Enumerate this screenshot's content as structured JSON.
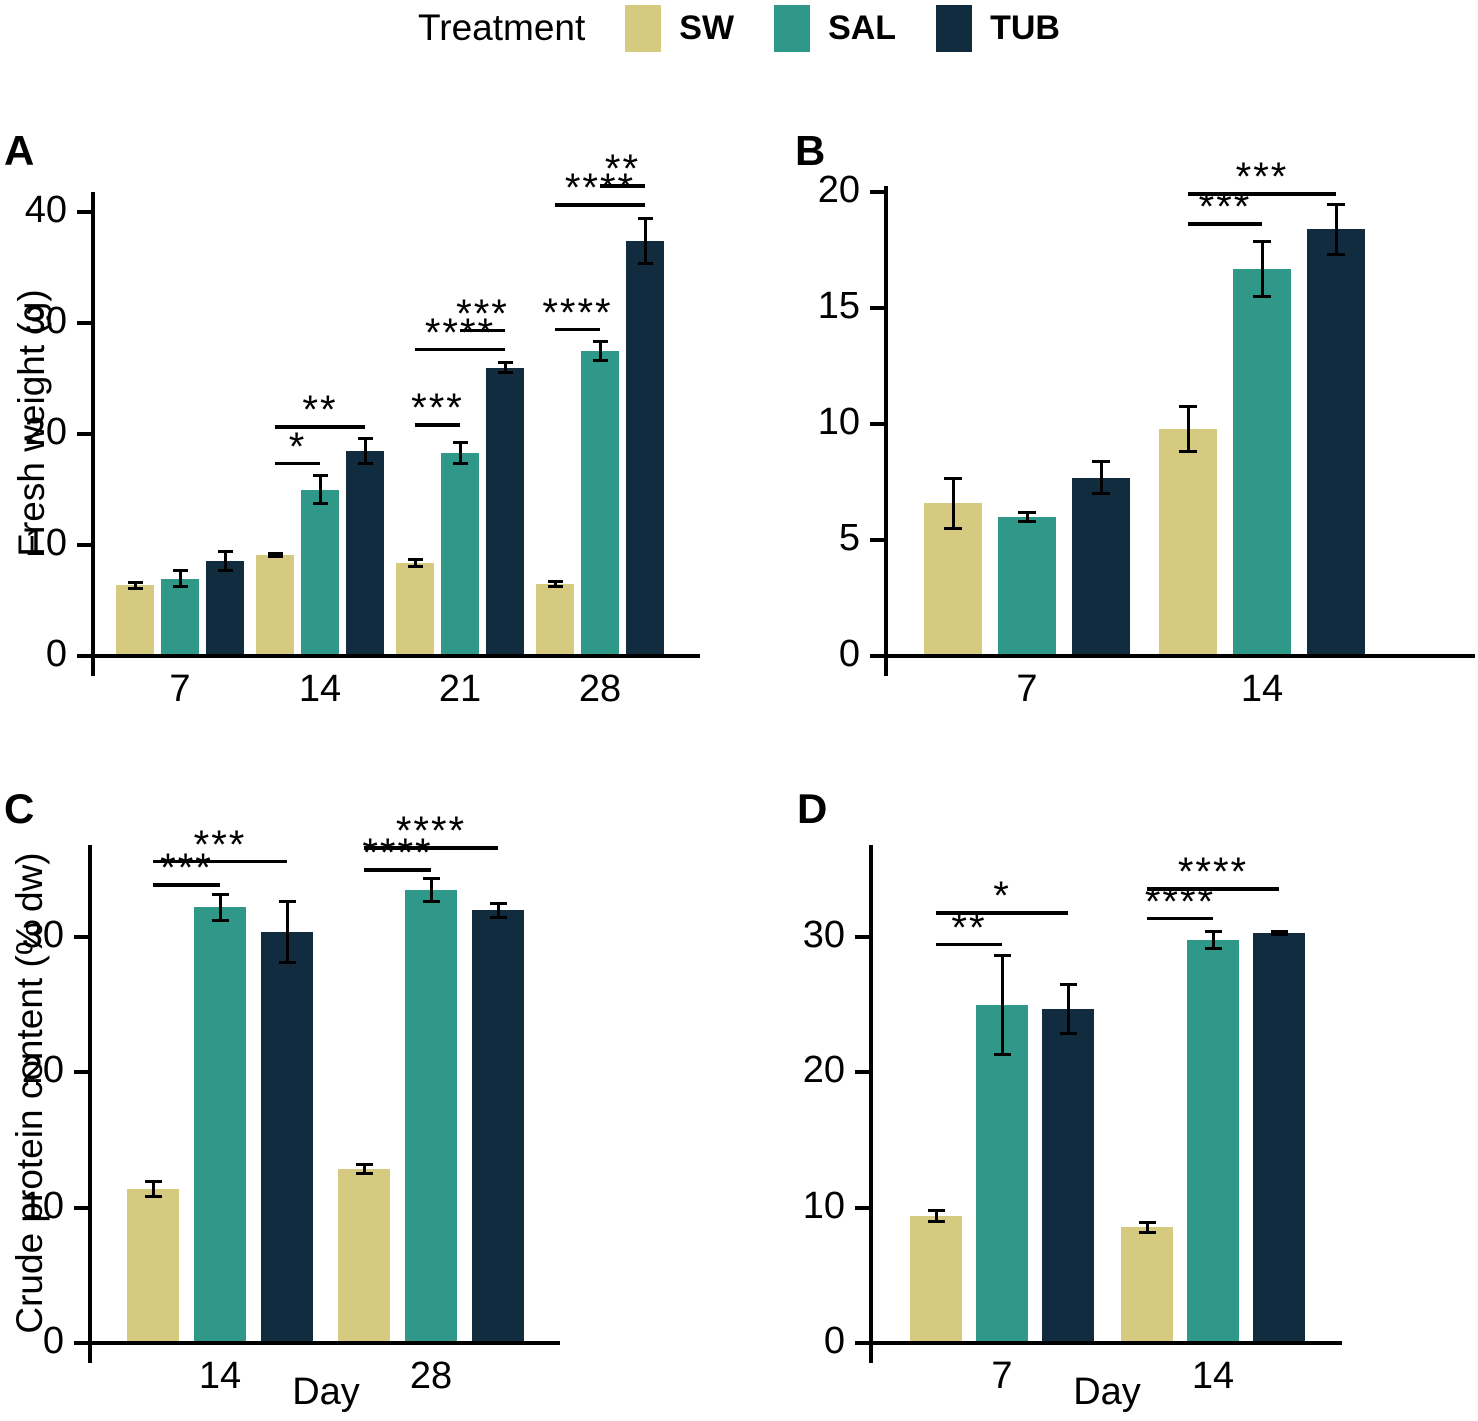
{
  "legend": {
    "title": "Treatment",
    "items": [
      {
        "label": "SW",
        "color": "#d5ca7f"
      },
      {
        "label": "SAL",
        "color": "#2f9889"
      },
      {
        "label": "TUB",
        "color": "#112b3f"
      }
    ]
  },
  "chart_data": [
    {
      "panel": "A",
      "type": "bar",
      "title": "A",
      "ylabel": "Fresh weight (g)",
      "xlabel": "",
      "categories": [
        "7",
        "14",
        "21",
        "28"
      ],
      "yticks": [
        0,
        10,
        20,
        30,
        40
      ],
      "ylim": [
        0,
        42
      ],
      "grid": false,
      "series": [
        {
          "name": "SW",
          "values": [
            6.2,
            8.9,
            8.2,
            6.3
          ],
          "errors": [
            0.3,
            0.2,
            0.4,
            0.3
          ]
        },
        {
          "name": "SAL",
          "values": [
            6.8,
            14.8,
            18.1,
            27.3
          ],
          "errors": [
            0.8,
            1.3,
            1.0,
            0.9
          ]
        },
        {
          "name": "TUB",
          "values": [
            8.4,
            18.3,
            25.8,
            37.2
          ],
          "errors": [
            0.9,
            1.2,
            0.5,
            2.1
          ]
        }
      ],
      "significance": [
        {
          "category": "14",
          "from": "SW",
          "to": "SAL",
          "label": "*",
          "y": 17.3
        },
        {
          "category": "14",
          "from": "SW",
          "to": "TUB",
          "label": "**",
          "y": 20.6
        },
        {
          "category": "21",
          "from": "SW",
          "to": "SAL",
          "label": "***",
          "y": 20.8
        },
        {
          "category": "21",
          "from": "SW",
          "to": "TUB",
          "label": "****",
          "y": 27.6
        },
        {
          "category": "21",
          "from": "SAL",
          "to": "TUB",
          "label": "***",
          "y": 29.3
        },
        {
          "category": "28",
          "from": "SW",
          "to": "SAL",
          "label": "****",
          "y": 29.4
        },
        {
          "category": "28",
          "from": "SW",
          "to": "TUB",
          "label": "****",
          "y": 40.6
        },
        {
          "category": "28",
          "from": "SAL",
          "to": "TUB",
          "label": "**",
          "y": 42.3
        }
      ]
    },
    {
      "panel": "B",
      "type": "bar",
      "title": "B",
      "ylabel": "",
      "xlabel": "",
      "categories": [
        "7",
        "14"
      ],
      "yticks": [
        0,
        5,
        10,
        15,
        20
      ],
      "ylim": [
        0,
        20.5
      ],
      "grid": false,
      "series": [
        {
          "name": "SW",
          "values": [
            6.5,
            9.7
          ],
          "errors": [
            1.1,
            1.0
          ]
        },
        {
          "name": "SAL",
          "values": [
            5.9,
            16.6
          ],
          "errors": [
            0.2,
            1.2
          ]
        },
        {
          "name": "TUB",
          "values": [
            7.6,
            18.3
          ],
          "errors": [
            0.7,
            1.1
          ]
        }
      ],
      "significance": [
        {
          "category": "14",
          "from": "SW",
          "to": "SAL",
          "label": "***",
          "y": 18.6
        },
        {
          "category": "14",
          "from": "SW",
          "to": "TUB",
          "label": "***",
          "y": 19.9
        }
      ]
    },
    {
      "panel": "C",
      "type": "bar",
      "title": "C",
      "ylabel": "Crude protein content (% dw)",
      "xlabel": "Day",
      "categories": [
        "14",
        "28"
      ],
      "yticks": [
        0,
        10,
        20,
        30
      ],
      "ylim": [
        0,
        36.5
      ],
      "grid": false,
      "series": [
        {
          "name": "SW",
          "values": [
            11.2,
            12.7
          ],
          "errors": [
            0.6,
            0.35
          ]
        },
        {
          "name": "SAL",
          "values": [
            32.0,
            33.3
          ],
          "errors": [
            1.0,
            0.9
          ]
        },
        {
          "name": "TUB",
          "values": [
            30.2,
            31.8
          ],
          "errors": [
            2.3,
            0.55
          ]
        }
      ],
      "significance": [
        {
          "category": "14",
          "from": "SW",
          "to": "SAL",
          "label": "***",
          "y": 33.8
        },
        {
          "category": "14",
          "from": "SW",
          "to": "TUB",
          "label": "***",
          "y": 35.5
        },
        {
          "category": "28",
          "from": "SW",
          "to": "SAL",
          "label": "****",
          "y": 34.9
        },
        {
          "category": "28",
          "from": "SW",
          "to": "TUB",
          "label": "****",
          "y": 36.5
        }
      ]
    },
    {
      "panel": "D",
      "type": "bar",
      "title": "D",
      "ylabel": "",
      "xlabel": "Day",
      "categories": [
        "7",
        "14"
      ],
      "yticks": [
        0,
        10,
        20,
        30
      ],
      "ylim": [
        0,
        36.5
      ],
      "grid": false,
      "series": [
        {
          "name": "SW",
          "values": [
            9.2,
            8.4
          ],
          "errors": [
            0.45,
            0.4
          ]
        },
        {
          "name": "SAL",
          "values": [
            24.8,
            29.6
          ],
          "errors": [
            3.7,
            0.65
          ]
        },
        {
          "name": "TUB",
          "values": [
            24.5,
            30.1
          ],
          "errors": [
            1.85,
            0.15
          ]
        }
      ],
      "significance": [
        {
          "category": "7",
          "from": "SW",
          "to": "SAL",
          "label": "**",
          "y": 29.4
        },
        {
          "category": "7",
          "from": "SW",
          "to": "TUB",
          "label": "*",
          "y": 31.7
        },
        {
          "category": "14",
          "from": "SW",
          "to": "SAL",
          "label": "****",
          "y": 31.3
        },
        {
          "category": "14",
          "from": "SW",
          "to": "TUB",
          "label": "****",
          "y": 33.5
        }
      ]
    }
  ]
}
